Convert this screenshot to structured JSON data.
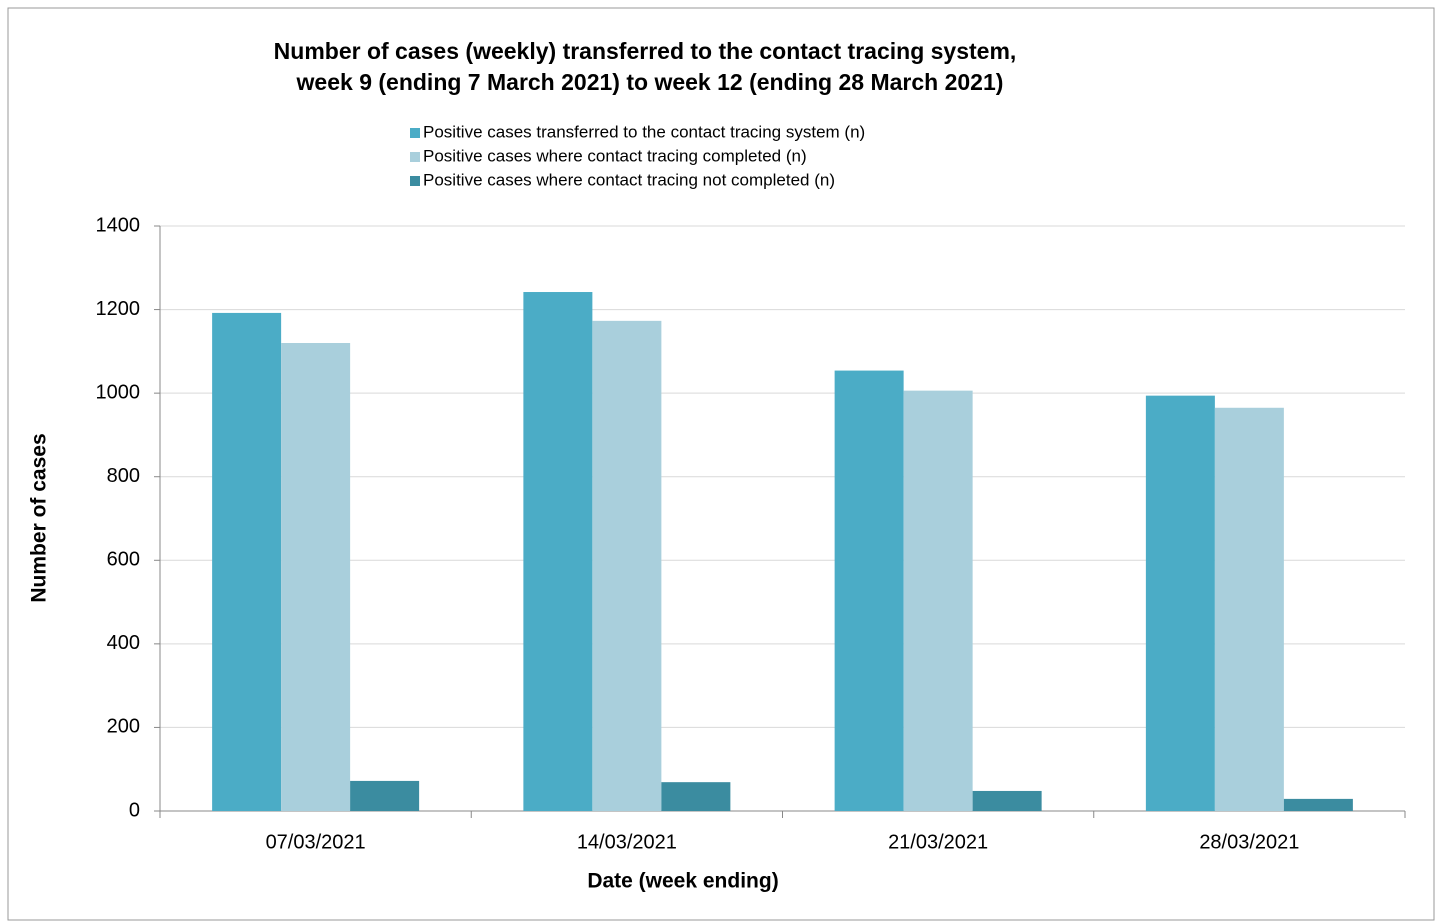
{
  "chart_data": {
    "type": "bar",
    "title": [
      "Number of cases (weekly) transferred to the contact tracing system,",
      "week 9 (ending 7 March 2021) to week 12 (ending 28 March 2021)"
    ],
    "x_label": "Date (week ending)",
    "y_label": "Number of cases",
    "categories": [
      "07/03/2021",
      "14/03/2021",
      "21/03/2021",
      "28/03/2021"
    ],
    "series": [
      {
        "name": "Positive cases transferred to the contact tracing system (n)",
        "color": "#4bacc6",
        "values": [
          1192,
          1242,
          1054,
          994
        ]
      },
      {
        "name": "Positive cases where contact tracing completed (n)",
        "color": "#a9cfdc",
        "values": [
          1120,
          1173,
          1006,
          965
        ]
      },
      {
        "name": "Positive cases where contact tracing not completed (n)",
        "color": "#3b8ca0",
        "values": [
          72,
          69,
          48,
          29
        ]
      }
    ],
    "ylim": [
      0,
      1400
    ],
    "yticks": [
      0,
      200,
      400,
      600,
      800,
      1000,
      1200,
      1400
    ],
    "grid": true
  }
}
